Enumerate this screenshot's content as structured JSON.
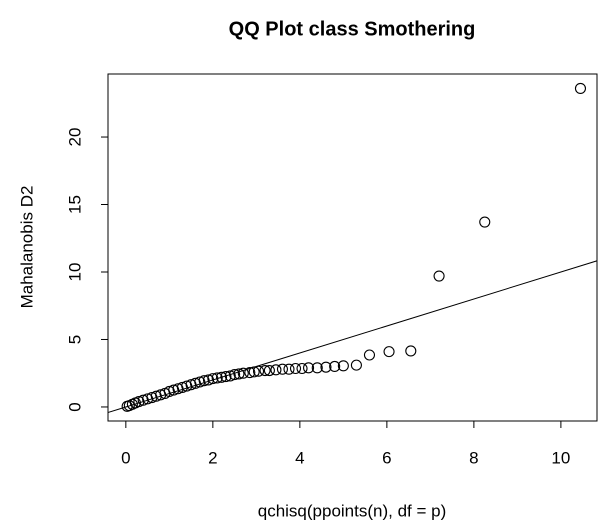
{
  "chart_data": {
    "type": "scatter",
    "title": "QQ Plot class Smothering",
    "xlabel": "qchisq(ppoints(n), df = p)",
    "ylabel": "Mahalanobis D2",
    "xlim": [
      -0.41,
      10.83
    ],
    "ylim": [
      -1.04,
      24.67
    ],
    "xticks": [
      0,
      2,
      4,
      6,
      8,
      10
    ],
    "yticks": [
      0,
      5,
      10,
      15,
      20
    ],
    "reference_line": {
      "intercept": 0,
      "slope": 1
    },
    "color": "#000000",
    "x": [
      0.03,
      0.08,
      0.15,
      0.22,
      0.3,
      0.4,
      0.5,
      0.6,
      0.7,
      0.8,
      0.9,
      1.0,
      1.1,
      1.2,
      1.3,
      1.4,
      1.5,
      1.6,
      1.7,
      1.8,
      1.9,
      2.0,
      2.1,
      2.2,
      2.3,
      2.4,
      2.5,
      2.6,
      2.7,
      2.85,
      2.95,
      3.05,
      3.2,
      3.3,
      3.45,
      3.6,
      3.75,
      3.9,
      4.05,
      4.2,
      4.4,
      4.6,
      4.8,
      5.0,
      5.3,
      5.6,
      6.05,
      6.55,
      7.2,
      8.25,
      10.45
    ],
    "y": [
      0.05,
      0.1,
      0.2,
      0.3,
      0.4,
      0.5,
      0.6,
      0.7,
      0.8,
      0.9,
      1.0,
      1.15,
      1.25,
      1.35,
      1.45,
      1.55,
      1.65,
      1.75,
      1.85,
      1.95,
      2.0,
      2.1,
      2.15,
      2.2,
      2.25,
      2.3,
      2.4,
      2.45,
      2.5,
      2.55,
      2.6,
      2.65,
      2.7,
      2.7,
      2.75,
      2.8,
      2.8,
      2.85,
      2.85,
      2.9,
      2.9,
      2.95,
      3.0,
      3.05,
      3.1,
      3.85,
      4.1,
      4.15,
      9.7,
      13.7,
      23.6
    ]
  }
}
